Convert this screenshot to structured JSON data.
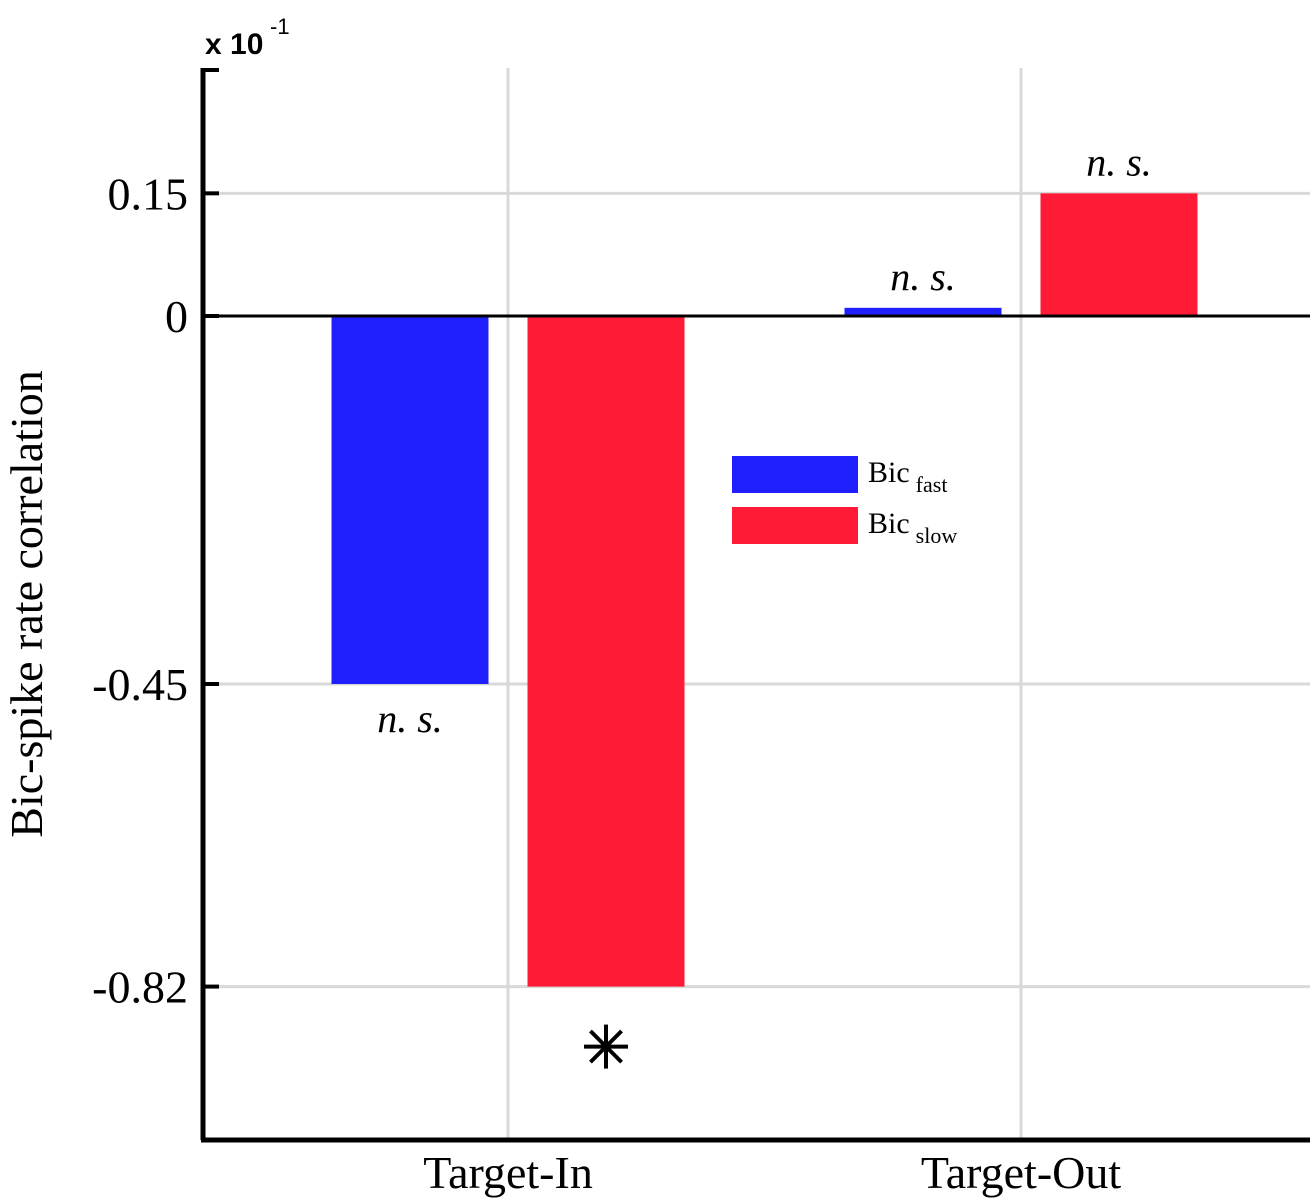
{
  "chart_data": {
    "type": "bar",
    "ylabel": "Bic-spike rate correlation",
    "y_multiplier": {
      "base": "x 10",
      "exponent": "-1"
    },
    "categories": [
      "Target-In",
      "Target-Out"
    ],
    "series": [
      {
        "name": "Bic",
        "name_sub": "fast",
        "color": "#2020ff",
        "values": [
          -0.45,
          0.01
        ]
      },
      {
        "name": "Bic",
        "name_sub": "slow",
        "color": "#ff1a35",
        "values": [
          -0.82,
          0.15
        ]
      }
    ],
    "significance": [
      [
        "n. s.",
        "n. s."
      ],
      [
        "*",
        "n. s."
      ]
    ],
    "yticks": [
      0.15,
      0,
      -0.45,
      -0.82
    ],
    "ytick_labels": [
      "0.15",
      "0",
      "-0.45",
      "-0.82"
    ],
    "ylim": [
      -1.0,
      0.3
    ],
    "grid": true,
    "legend_position": "center"
  }
}
